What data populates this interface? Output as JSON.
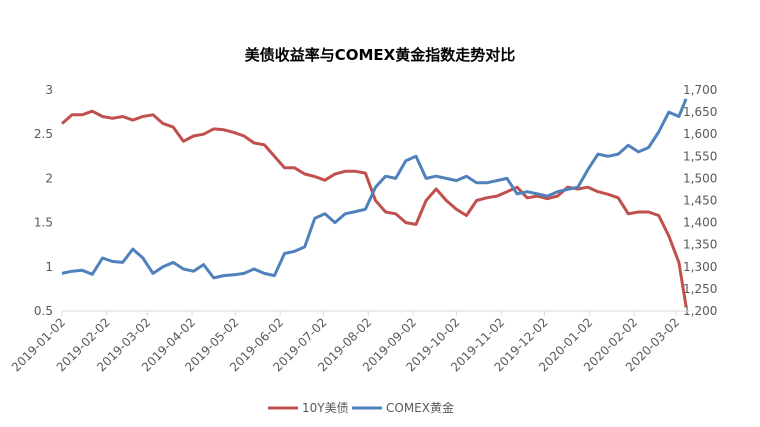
{
  "chart_data": {
    "type": "line",
    "title": "美债收益率与COMEX黄金指数走势对比",
    "y_left": {
      "range": [
        0.5,
        3
      ],
      "ticks": [
        "0.5",
        "1",
        "1.5",
        "2",
        "2.5",
        "3"
      ]
    },
    "y_right": {
      "range": [
        1200,
        1700
      ],
      "ticks": [
        "1,200",
        "1,250",
        "1,300",
        "1,350",
        "1,400",
        "1,450",
        "1,500",
        "1,550",
        "1,600",
        "1,650",
        "1,700"
      ]
    },
    "x_ticks": [
      "2019-01-02",
      "2019-02-02",
      "2019-03-02",
      "2019-04-02",
      "2019-05-02",
      "2019-06-02",
      "2019-07-02",
      "2019-08-02",
      "2019-09-02",
      "2019-10-02",
      "2019-11-02",
      "2019-12-02",
      "2020-01-02",
      "2020-02-02",
      "2020-03-02"
    ],
    "grid": false,
    "legend_position": "bottom",
    "x": [
      "2019-01-02",
      "2019-01-09",
      "2019-01-16",
      "2019-01-23",
      "2019-01-30",
      "2019-02-06",
      "2019-02-13",
      "2019-02-20",
      "2019-02-27",
      "2019-03-06",
      "2019-03-13",
      "2019-03-20",
      "2019-03-27",
      "2019-04-03",
      "2019-04-10",
      "2019-04-17",
      "2019-04-24",
      "2019-05-01",
      "2019-05-08",
      "2019-05-15",
      "2019-05-22",
      "2019-05-29",
      "2019-06-05",
      "2019-06-12",
      "2019-06-19",
      "2019-06-26",
      "2019-07-03",
      "2019-07-10",
      "2019-07-17",
      "2019-07-24",
      "2019-07-31",
      "2019-08-07",
      "2019-08-14",
      "2019-08-21",
      "2019-08-28",
      "2019-09-04",
      "2019-09-11",
      "2019-09-18",
      "2019-09-25",
      "2019-10-02",
      "2019-10-09",
      "2019-10-16",
      "2019-10-23",
      "2019-10-30",
      "2019-11-06",
      "2019-11-13",
      "2019-11-20",
      "2019-11-27",
      "2019-12-04",
      "2019-12-11",
      "2019-12-18",
      "2019-12-25",
      "2020-01-01",
      "2020-01-08",
      "2020-01-15",
      "2020-01-22",
      "2020-01-29",
      "2020-02-05",
      "2020-02-12",
      "2020-02-19",
      "2020-02-26",
      "2020-03-04",
      "2020-03-09"
    ],
    "series": [
      {
        "name": "10Y美债",
        "axis": "left",
        "color": "#c0504d",
        "values": [
          2.62,
          2.72,
          2.72,
          2.76,
          2.7,
          2.68,
          2.7,
          2.66,
          2.7,
          2.72,
          2.62,
          2.58,
          2.42,
          2.48,
          2.5,
          2.56,
          2.55,
          2.52,
          2.48,
          2.4,
          2.38,
          2.25,
          2.12,
          2.12,
          2.05,
          2.02,
          1.98,
          2.05,
          2.08,
          2.08,
          2.06,
          1.75,
          1.62,
          1.6,
          1.5,
          1.48,
          1.75,
          1.88,
          1.75,
          1.65,
          1.58,
          1.75,
          1.78,
          1.8,
          1.85,
          1.9,
          1.78,
          1.8,
          1.77,
          1.8,
          1.9,
          1.88,
          1.9,
          1.85,
          1.82,
          1.78,
          1.6,
          1.62,
          1.62,
          1.58,
          1.35,
          1.05,
          0.55
        ]
      },
      {
        "name": "COMEX黄金",
        "axis": "right",
        "color": "#4f81bd",
        "values": [
          1285,
          1290,
          1292,
          1283,
          1320,
          1312,
          1310,
          1340,
          1320,
          1285,
          1300,
          1310,
          1295,
          1290,
          1305,
          1275,
          1280,
          1282,
          1285,
          1295,
          1285,
          1280,
          1330,
          1335,
          1345,
          1410,
          1420,
          1400,
          1420,
          1425,
          1430,
          1480,
          1505,
          1500,
          1540,
          1550,
          1500,
          1505,
          1500,
          1495,
          1505,
          1490,
          1490,
          1495,
          1500,
          1465,
          1470,
          1465,
          1460,
          1470,
          1475,
          1480,
          1520,
          1555,
          1550,
          1555,
          1575,
          1560,
          1570,
          1605,
          1650,
          1640,
          1680
        ]
      }
    ]
  }
}
